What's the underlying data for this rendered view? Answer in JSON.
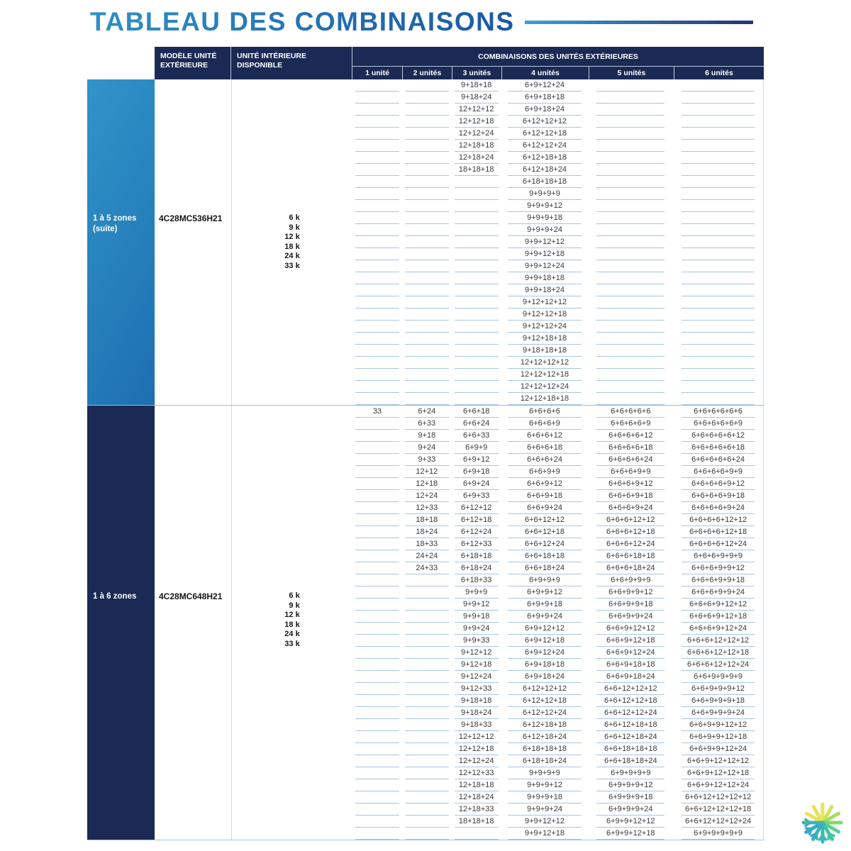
{
  "title": {
    "text": "TABLEAU DES COMBINAISONS"
  },
  "table": {
    "headers": {
      "col_model": "MODÈLE UNITÉ EXTÉRIEURE",
      "col_indoor": "UNITÉ INTÉRIEURE DISPONIBLE",
      "col_combos": "COMBINAISONS DES UNITÉS EXTÉRIEURES",
      "unit_cols": [
        "1 unité",
        "2 unités",
        "3 unités",
        "4 unités",
        "5 unités",
        "6 unités"
      ]
    },
    "sections": [
      {
        "zone_label": "1 à 5 zones",
        "zone_sublabel": "(suite)",
        "model": "4C28MC536H21",
        "indoor_units": [
          "6 k",
          "9 k",
          "12 k",
          "18 k",
          "24 k",
          "33 k"
        ],
        "rows": [
          [
            "",
            "",
            "9+18+18",
            "6+9+12+24",
            "",
            ""
          ],
          [
            "",
            "",
            "9+18+24",
            "6+9+18+18",
            "",
            ""
          ],
          [
            "",
            "",
            "12+12+12",
            "6+9+18+24",
            "",
            ""
          ],
          [
            "",
            "",
            "12+12+18",
            "6+12+12+12",
            "",
            ""
          ],
          [
            "",
            "",
            "12+12+24",
            "6+12+12+18",
            "",
            ""
          ],
          [
            "",
            "",
            "12+18+18",
            "6+12+12+24",
            "",
            ""
          ],
          [
            "",
            "",
            "12+18+24",
            "6+12+18+18",
            "",
            ""
          ],
          [
            "",
            "",
            "18+18+18",
            "6+12+18+24",
            "",
            ""
          ],
          [
            "",
            "",
            "",
            "6+18+18+18",
            "",
            ""
          ],
          [
            "",
            "",
            "",
            "9+9+9+9",
            "",
            ""
          ],
          [
            "",
            "",
            "",
            "9+9+9+12",
            "",
            ""
          ],
          [
            "",
            "",
            "",
            "9+9+9+18",
            "",
            ""
          ],
          [
            "",
            "",
            "",
            "9+9+9+24",
            "",
            ""
          ],
          [
            "",
            "",
            "",
            "9+9+12+12",
            "",
            ""
          ],
          [
            "",
            "",
            "",
            "9+9+12+18",
            "",
            ""
          ],
          [
            "",
            "",
            "",
            "9+9+12+24",
            "",
            ""
          ],
          [
            "",
            "",
            "",
            "9+9+18+18",
            "",
            ""
          ],
          [
            "",
            "",
            "",
            "9+9+18+24",
            "",
            ""
          ],
          [
            "",
            "",
            "",
            "9+12+12+12",
            "",
            ""
          ],
          [
            "",
            "",
            "",
            "9+12+12+18",
            "",
            ""
          ],
          [
            "",
            "",
            "",
            "9+12+12+24",
            "",
            ""
          ],
          [
            "",
            "",
            "",
            "9+12+18+18",
            "",
            ""
          ],
          [
            "",
            "",
            "",
            "9+18+18+18",
            "",
            ""
          ],
          [
            "",
            "",
            "",
            "12+12+12+12",
            "",
            ""
          ],
          [
            "",
            "",
            "",
            "12+12+12+18",
            "",
            ""
          ],
          [
            "",
            "",
            "",
            "12+12+12+24",
            "",
            ""
          ],
          [
            "",
            "",
            "",
            "12+12+18+18",
            "",
            ""
          ]
        ]
      },
      {
        "zone_label": "1 à 6 zones",
        "zone_sublabel": "",
        "model": "4C28MC648H21",
        "indoor_units": [
          "6 k",
          "9 k",
          "12 k",
          "18 k",
          "24 k",
          "33 k"
        ],
        "rows": [
          [
            "33",
            "6+24",
            "6+6+18",
            "6+6+6+6",
            "6+6+6+6+6",
            "6+6+6+6+6+6"
          ],
          [
            "",
            "6+33",
            "6+6+24",
            "6+6+6+9",
            "6+6+6+6+9",
            "6+6+6+6+6+9"
          ],
          [
            "",
            "9+18",
            "6+6+33",
            "6+6+6+12",
            "6+6+6+6+12",
            "6+6+6+6+6+12"
          ],
          [
            "",
            "9+24",
            "6+9+9",
            "6+6+6+18",
            "6+6+6+6+18",
            "6+6+6+6+6+18"
          ],
          [
            "",
            "9+33",
            "6+9+12",
            "6+6+6+24",
            "6+6+6+6+24",
            "6+6+6+6+6+24"
          ],
          [
            "",
            "12+12",
            "6+9+18",
            "6+6+9+9",
            "6+6+6+9+9",
            "6+6+6+6+9+9"
          ],
          [
            "",
            "12+18",
            "6+9+24",
            "6+6+9+12",
            "6+6+6+9+12",
            "6+6+6+6+9+12"
          ],
          [
            "",
            "12+24",
            "6+9+33",
            "6+6+9+18",
            "6+6+6+9+18",
            "6+6+6+6+9+18"
          ],
          [
            "",
            "12+33",
            "6+12+12",
            "6+6+9+24",
            "6+6+6+9+24",
            "6+6+6+6+9+24"
          ],
          [
            "",
            "18+18",
            "6+12+18",
            "6+6+12+12",
            "6+6+6+12+12",
            "6+6+6+6+12+12"
          ],
          [
            "",
            "18+24",
            "6+12+24",
            "6+6+12+18",
            "6+6+6+12+18",
            "6+6+6+6+12+18"
          ],
          [
            "",
            "18+33",
            "6+12+33",
            "6+6+12+24",
            "6+6+6+12+24",
            "6+6+6+6+12+24"
          ],
          [
            "",
            "24+24",
            "6+18+18",
            "6+6+18+18",
            "6+6+6+18+18",
            "6+6+6+9+9+9"
          ],
          [
            "",
            "24+33",
            "6+18+24",
            "6+6+18+24",
            "6+6+6+18+24",
            "6+6+6+9+9+12"
          ],
          [
            "",
            "",
            "6+18+33",
            "6+9+9+9",
            "6+6+9+9+9",
            "6+6+6+9+9+18"
          ],
          [
            "",
            "",
            "9+9+9",
            "6+9+9+12",
            "6+6+9+9+12",
            "6+6+6+9+9+24"
          ],
          [
            "",
            "",
            "9+9+12",
            "6+9+9+18",
            "6+6+9+9+18",
            "6+6+6+9+12+12"
          ],
          [
            "",
            "",
            "9+9+18",
            "6+9+9+24",
            "6+6+9+9+24",
            "6+6+6+9+12+18"
          ],
          [
            "",
            "",
            "9+9+24",
            "6+9+12+12",
            "6+6+9+12+12",
            "6+6+6+9+12+24"
          ],
          [
            "",
            "",
            "9+9+33",
            "6+9+12+18",
            "6+6+9+12+18",
            "6+6+6+12+12+12"
          ],
          [
            "",
            "",
            "9+12+12",
            "6+9+12+24",
            "6+6+9+12+24",
            "6+6+6+12+12+18"
          ],
          [
            "",
            "",
            "9+12+18",
            "6+9+18+18",
            "6+6+9+18+18",
            "6+6+6+12+12+24"
          ],
          [
            "",
            "",
            "9+12+24",
            "6+9+18+24",
            "6+6+9+18+24",
            "6+6+9+9+9+9"
          ],
          [
            "",
            "",
            "9+12+33",
            "6+12+12+12",
            "6+6+12+12+12",
            "6+6+9+9+9+12"
          ],
          [
            "",
            "",
            "9+18+18",
            "6+12+12+18",
            "6+6+12+12+18",
            "6+6+9+9+9+18"
          ],
          [
            "",
            "",
            "9+18+24",
            "6+12+12+24",
            "6+6+12+12+24",
            "6+6+9+9+9+24"
          ],
          [
            "",
            "",
            "9+18+33",
            "6+12+18+18",
            "6+6+12+18+18",
            "6+6+9+9+12+12"
          ],
          [
            "",
            "",
            "12+12+12",
            "6+12+18+24",
            "6+6+12+18+24",
            "6+6+9+9+12+18"
          ],
          [
            "",
            "",
            "12+12+18",
            "6+18+18+18",
            "6+6+18+18+18",
            "6+6+9+9+12+24"
          ],
          [
            "",
            "",
            "12+12+24",
            "6+18+18+24",
            "6+6+18+18+24",
            "6+6+9+12+12+12"
          ],
          [
            "",
            "",
            "12+12+33",
            "9+9+9+9",
            "6+9+9+9+9",
            "6+6+9+12+12+18"
          ],
          [
            "",
            "",
            "12+18+18",
            "9+9+9+12",
            "6+9+9+9+12",
            "6+6+9+12+12+24"
          ],
          [
            "",
            "",
            "12+18+24",
            "9+9+9+18",
            "6+9+9+9+18",
            "6+6+12+12+12+12"
          ],
          [
            "",
            "",
            "12+18+33",
            "9+9+9+24",
            "6+9+9+9+24",
            "6+6+12+12+12+18"
          ],
          [
            "",
            "",
            "18+18+18",
            "9+9+12+12",
            "6+9+9+12+12",
            "6+6+12+12+12+24"
          ],
          [
            "",
            "",
            "",
            "9+9+12+18",
            "6+9+9+12+18",
            "6+9+9+9+9+9"
          ]
        ]
      }
    ]
  },
  "logo": {
    "name": "snowflake-logo",
    "colors": [
      "#e9e258",
      "#cfe35f",
      "#83d76a",
      "#41c2a6",
      "#3ab8b6",
      "#37afc2"
    ]
  },
  "colors": {
    "title_gradient": [
      "#2e90c7",
      "#1c57a4"
    ],
    "header_navy": "#1b2a54",
    "zone_band_gradient": [
      "#3194ca",
      "#1d6fb0"
    ],
    "row_line": "#a9c5e3"
  }
}
